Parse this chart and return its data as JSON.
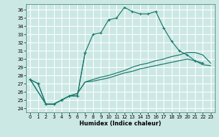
{
  "xlabel": "Humidex (Indice chaleur)",
  "bg_color": "#cce8e4",
  "grid_color": "#ffffff",
  "line_color": "#1a7a6e",
  "xlim": [
    -0.5,
    23.5
  ],
  "ylim": [
    23.5,
    36.7
  ],
  "xticks": [
    0,
    1,
    2,
    3,
    4,
    5,
    6,
    7,
    8,
    9,
    10,
    11,
    12,
    13,
    14,
    15,
    16,
    17,
    18,
    19,
    20,
    21,
    22,
    23
  ],
  "yticks": [
    24,
    25,
    26,
    27,
    28,
    29,
    30,
    31,
    32,
    33,
    34,
    35,
    36
  ],
  "line1_x": [
    0,
    1,
    2,
    3,
    4,
    5,
    6,
    7,
    8,
    9,
    10,
    11,
    12,
    13,
    14,
    15,
    16,
    17,
    18,
    19,
    20,
    21,
    22
  ],
  "line1_y": [
    27.5,
    27.0,
    24.5,
    24.5,
    25.0,
    25.5,
    25.5,
    30.8,
    33.0,
    33.2,
    34.8,
    35.0,
    36.3,
    35.8,
    35.5,
    35.5,
    35.8,
    33.8,
    32.2,
    31.0,
    30.5,
    29.8,
    29.5
  ],
  "line2_x": [
    0,
    1,
    2,
    3,
    4,
    5,
    6,
    7
  ],
  "line2_y": [
    27.5,
    27.0,
    24.5,
    24.5,
    25.0,
    25.5,
    25.5,
    30.8
  ],
  "line3_x": [
    0,
    2,
    3,
    4,
    5,
    6,
    7,
    8,
    9,
    10,
    11,
    12,
    13,
    14,
    15,
    16,
    17,
    18,
    19,
    20,
    21,
    22,
    23
  ],
  "line3_y": [
    27.5,
    24.5,
    24.5,
    25.0,
    25.5,
    25.8,
    27.2,
    27.5,
    27.8,
    28.0,
    28.3,
    28.6,
    29.0,
    29.3,
    29.5,
    29.8,
    30.0,
    30.3,
    30.5,
    30.8,
    30.8,
    30.5,
    29.5
  ],
  "line4_x": [
    0,
    2,
    3,
    4,
    5,
    6,
    7,
    8,
    9,
    10,
    11,
    12,
    13,
    14,
    15,
    16,
    17,
    18,
    19,
    20,
    21,
    22,
    23
  ],
  "line4_y": [
    27.5,
    24.5,
    24.5,
    25.0,
    25.5,
    25.8,
    27.2,
    27.3,
    27.5,
    27.7,
    28.0,
    28.3,
    28.5,
    28.8,
    29.0,
    29.2,
    29.4,
    29.6,
    29.8,
    30.0,
    29.8,
    29.3,
    29.2
  ]
}
